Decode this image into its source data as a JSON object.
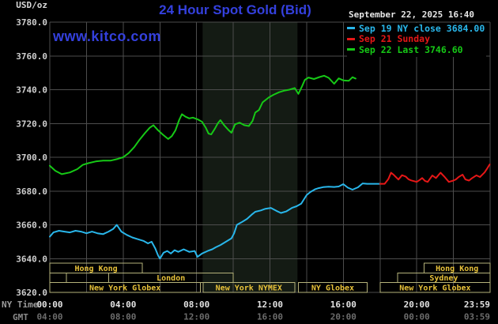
{
  "header": {
    "unit_label": "USD/oz",
    "title": "24 Hour Spot Gold (Bid)",
    "datetime": "September 22, 2025 16:40",
    "watermark": "www.kitco.com"
  },
  "legend": {
    "items": [
      {
        "label": "Sep 19 NY close 3684.00",
        "color": "#29b6ea"
      },
      {
        "label": "Sep 21 Sunday",
        "color": "#e61717"
      },
      {
        "label": "Sep 22 Last 3746.60",
        "color": "#16c916"
      }
    ]
  },
  "axis_captions": {
    "ny": "NY Time",
    "gmt": "GMT"
  },
  "sessions": {
    "border_color": "#b5b27a",
    "text_color": "#e8c23a",
    "rows": [
      {
        "boxes": [
          {
            "label": "Hong Kong",
            "from": 0,
            "to": 5.05
          },
          {
            "label": "Hong Kong",
            "from": 20.4,
            "to": 24
          }
        ]
      },
      {
        "boxes": [
          {
            "label": "",
            "from": 0,
            "to": 0.9
          },
          {
            "label": "",
            "from": 0.9,
            "to": 3.2
          },
          {
            "label": "London",
            "from": 3.2,
            "to": 10.0
          },
          {
            "label": "Sydney",
            "from": 18.95,
            "to": 24
          }
        ]
      },
      {
        "boxes": [
          {
            "label": "New York Globex",
            "from": 0,
            "to": 8.2
          },
          {
            "label": "New York NYMEX",
            "from": 8.35,
            "to": 13.35
          },
          {
            "label": "NY Globex",
            "from": 13.55,
            "to": 17.3
          },
          {
            "label": "New York Globex",
            "from": 18.0,
            "to": 24
          }
        ]
      }
    ]
  },
  "chart_data": {
    "type": "line",
    "title": "24 Hour Spot Gold (Bid)",
    "ylabel": "USD/oz",
    "ylim": [
      3620,
      3780
    ],
    "xlim_hours": [
      0,
      24
    ],
    "grid": {
      "on": true,
      "color": "#4d4d4d",
      "x_step_hours": 2,
      "y_step": 20
    },
    "band": {
      "from_hour": 8.33,
      "to_hour": 13.5,
      "color": "#141b14"
    },
    "y_ticks": [
      {
        "value": 3780,
        "label": "3780.0"
      },
      {
        "value": 3760,
        "label": "3760.0"
      },
      {
        "value": 3740,
        "label": "3740.0"
      },
      {
        "value": 3720,
        "label": "3720.0"
      },
      {
        "value": 3700,
        "label": "3700.0"
      },
      {
        "value": 3680,
        "label": "3680.0"
      },
      {
        "value": 3660,
        "label": "3660.0"
      },
      {
        "value": 3640,
        "label": "3640.0"
      },
      {
        "value": 3620,
        "label": "3620.0"
      }
    ],
    "x_ticks": [
      {
        "hour": 0,
        "ny": "00:00",
        "gmt": "04:00",
        "align": "middle"
      },
      {
        "hour": 4,
        "ny": "04:00",
        "gmt": "08:00",
        "align": "middle"
      },
      {
        "hour": 8,
        "ny": "08:00",
        "gmt": "12:00",
        "align": "middle"
      },
      {
        "hour": 12,
        "ny": "12:00",
        "gmt": "16:00",
        "align": "middle"
      },
      {
        "hour": 16,
        "ny": "16:00",
        "gmt": "20:00",
        "align": "middle"
      },
      {
        "hour": 20,
        "ny": "20:00",
        "gmt": "00:00",
        "align": "middle"
      },
      {
        "hour": 23.983,
        "ny": "23:59",
        "gmt": "03:59",
        "align": "end"
      }
    ],
    "series": [
      {
        "name": "Sep 19 NY close",
        "color": "#29b6ea",
        "points": [
          [
            0,
            3653
          ],
          [
            0.2,
            3655.5
          ],
          [
            0.5,
            3656.5
          ],
          [
            0.8,
            3656
          ],
          [
            1.1,
            3655.5
          ],
          [
            1.4,
            3656.5
          ],
          [
            1.7,
            3656
          ],
          [
            2.0,
            3655
          ],
          [
            2.3,
            3656
          ],
          [
            2.6,
            3655
          ],
          [
            2.9,
            3654.5
          ],
          [
            3.2,
            3656
          ],
          [
            3.45,
            3657.5
          ],
          [
            3.65,
            3660
          ],
          [
            3.9,
            3656
          ],
          [
            4.2,
            3654
          ],
          [
            4.5,
            3652.5
          ],
          [
            4.8,
            3651.5
          ],
          [
            5.1,
            3650.5
          ],
          [
            5.35,
            3649
          ],
          [
            5.55,
            3650
          ],
          [
            5.75,
            3646
          ],
          [
            5.9,
            3642
          ],
          [
            6.0,
            3640
          ],
          [
            6.2,
            3643.5
          ],
          [
            6.4,
            3644.5
          ],
          [
            6.6,
            3643
          ],
          [
            6.8,
            3645
          ],
          [
            7.0,
            3644
          ],
          [
            7.3,
            3645.5
          ],
          [
            7.6,
            3644
          ],
          [
            7.9,
            3644.5
          ],
          [
            8.05,
            3641
          ],
          [
            8.3,
            3643
          ],
          [
            8.6,
            3644.5
          ],
          [
            8.85,
            3645.5
          ],
          [
            9.05,
            3646.7
          ],
          [
            9.3,
            3648
          ],
          [
            9.6,
            3650
          ],
          [
            9.9,
            3652
          ],
          [
            10.05,
            3655
          ],
          [
            10.2,
            3660
          ],
          [
            10.45,
            3661.5
          ],
          [
            10.75,
            3663.5
          ],
          [
            11.0,
            3666
          ],
          [
            11.2,
            3667.7
          ],
          [
            11.5,
            3668.5
          ],
          [
            11.75,
            3669.5
          ],
          [
            12.05,
            3670
          ],
          [
            12.35,
            3668.3
          ],
          [
            12.6,
            3667
          ],
          [
            12.9,
            3668
          ],
          [
            13.2,
            3670
          ],
          [
            13.45,
            3671
          ],
          [
            13.7,
            3672.5
          ],
          [
            13.85,
            3675
          ],
          [
            14.0,
            3677.6
          ],
          [
            14.2,
            3679.4
          ],
          [
            14.45,
            3681
          ],
          [
            14.65,
            3681.7
          ],
          [
            14.9,
            3682.3
          ],
          [
            15.2,
            3682.6
          ],
          [
            15.5,
            3682.4
          ],
          [
            15.75,
            3682.7
          ],
          [
            16.0,
            3684.1
          ],
          [
            16.25,
            3682
          ],
          [
            16.5,
            3680.8
          ],
          [
            16.8,
            3682.2
          ],
          [
            17.05,
            3684.5
          ],
          [
            17.3,
            3684.3
          ],
          [
            18.0,
            3684.3
          ]
        ]
      },
      {
        "name": "Sep 21 Sunday",
        "color": "#e61717",
        "points": [
          [
            18.0,
            3684.3
          ],
          [
            18.25,
            3684.3
          ],
          [
            18.45,
            3687
          ],
          [
            18.6,
            3690.9
          ],
          [
            18.75,
            3689.5
          ],
          [
            19.0,
            3686.8
          ],
          [
            19.2,
            3689.4
          ],
          [
            19.4,
            3688.6
          ],
          [
            19.55,
            3687
          ],
          [
            19.7,
            3686.3
          ],
          [
            20.0,
            3685.4
          ],
          [
            20.15,
            3686.5
          ],
          [
            20.3,
            3687.7
          ],
          [
            20.45,
            3686
          ],
          [
            20.6,
            3685.4
          ],
          [
            20.85,
            3689.2
          ],
          [
            21.05,
            3687.7
          ],
          [
            21.3,
            3690.9
          ],
          [
            21.5,
            3688.6
          ],
          [
            21.75,
            3685.4
          ],
          [
            22.0,
            3686.2
          ],
          [
            22.15,
            3687
          ],
          [
            22.3,
            3688.4
          ],
          [
            22.5,
            3689.7
          ],
          [
            22.65,
            3686.9
          ],
          [
            22.85,
            3686.2
          ],
          [
            23.0,
            3687.5
          ],
          [
            23.25,
            3689.3
          ],
          [
            23.45,
            3688.3
          ],
          [
            23.7,
            3691
          ],
          [
            23.85,
            3693.5
          ],
          [
            23.98,
            3695.8
          ]
        ]
      },
      {
        "name": "Sep 22 Last",
        "color": "#16c916",
        "points": [
          [
            0,
            3695
          ],
          [
            0.3,
            3692
          ],
          [
            0.65,
            3690
          ],
          [
            1.1,
            3691
          ],
          [
            1.5,
            3693
          ],
          [
            1.8,
            3695.5
          ],
          [
            2.1,
            3696.5
          ],
          [
            2.5,
            3697.5
          ],
          [
            2.9,
            3698
          ],
          [
            3.3,
            3698
          ],
          [
            3.7,
            3699
          ],
          [
            4.0,
            3700
          ],
          [
            4.3,
            3702.5
          ],
          [
            4.6,
            3706
          ],
          [
            4.9,
            3710.5
          ],
          [
            5.2,
            3714.5
          ],
          [
            5.45,
            3717.5
          ],
          [
            5.65,
            3719
          ],
          [
            5.9,
            3716
          ],
          [
            6.15,
            3713.5
          ],
          [
            6.45,
            3710.8
          ],
          [
            6.65,
            3712.5
          ],
          [
            6.85,
            3716
          ],
          [
            7.05,
            3722
          ],
          [
            7.2,
            3725.5
          ],
          [
            7.4,
            3724
          ],
          [
            7.6,
            3723
          ],
          [
            7.8,
            3723.5
          ],
          [
            8.05,
            3722.5
          ],
          [
            8.3,
            3721
          ],
          [
            8.5,
            3717.5
          ],
          [
            8.65,
            3714
          ],
          [
            8.8,
            3713.5
          ],
          [
            9.0,
            3717
          ],
          [
            9.15,
            3720
          ],
          [
            9.3,
            3722
          ],
          [
            9.5,
            3719
          ],
          [
            9.75,
            3716
          ],
          [
            9.9,
            3714.5
          ],
          [
            10.1,
            3719.5
          ],
          [
            10.35,
            3720.5
          ],
          [
            10.6,
            3719
          ],
          [
            10.85,
            3718.5
          ],
          [
            11.05,
            3721.5
          ],
          [
            11.2,
            3726.5
          ],
          [
            11.4,
            3728
          ],
          [
            11.6,
            3732.5
          ],
          [
            11.95,
            3735.5
          ],
          [
            12.2,
            3737
          ],
          [
            12.5,
            3738.5
          ],
          [
            12.8,
            3739.5
          ],
          [
            13.05,
            3740
          ],
          [
            13.35,
            3741
          ],
          [
            13.55,
            3737.5
          ],
          [
            13.75,
            3742
          ],
          [
            13.9,
            3745.8
          ],
          [
            14.1,
            3747.2
          ],
          [
            14.4,
            3746.3
          ],
          [
            14.7,
            3747.5
          ],
          [
            14.95,
            3748.3
          ],
          [
            15.2,
            3747
          ],
          [
            15.5,
            3743.5
          ],
          [
            15.75,
            3746.7
          ],
          [
            16.0,
            3745.5
          ],
          [
            16.3,
            3745.3
          ],
          [
            16.5,
            3747.4
          ],
          [
            16.67,
            3746.6
          ]
        ]
      }
    ]
  }
}
